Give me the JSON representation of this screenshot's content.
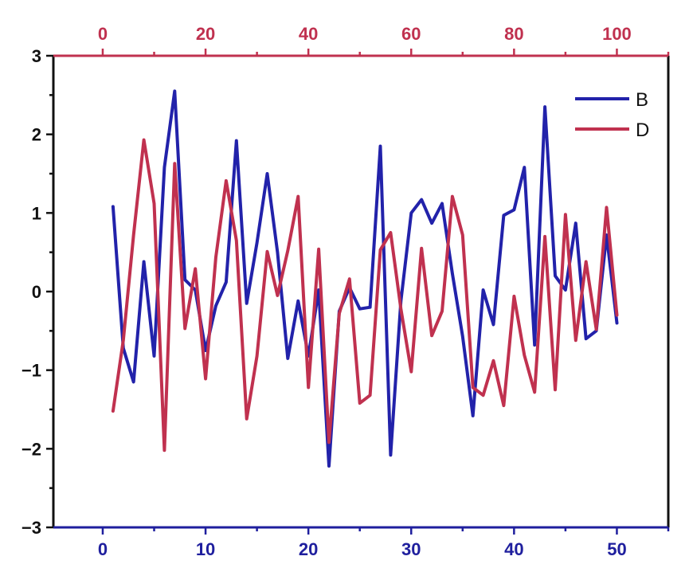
{
  "chart_data": {
    "type": "line",
    "title": "",
    "xlabel": "",
    "ylabel": "",
    "legend_position": "top-right",
    "grid": false,
    "x_bottom": {
      "range": [
        -4.8,
        55
      ],
      "ticks": [
        0,
        10,
        20,
        30,
        40,
        50
      ],
      "color": "#1f1f9e"
    },
    "x_top": {
      "range": [
        -9.6,
        110
      ],
      "ticks": [
        0,
        20,
        40,
        60,
        80,
        100
      ],
      "color": "#c0314f"
    },
    "y": {
      "range": [
        -3,
        3
      ],
      "ticks": [
        -3,
        -2,
        -1,
        0,
        1,
        2,
        3
      ]
    },
    "series": [
      {
        "name": "B",
        "color": "#2222aa",
        "axis": "bottom",
        "x": [
          1,
          2,
          3,
          4,
          5,
          6,
          7,
          8,
          9,
          10,
          11,
          12,
          13,
          14,
          15,
          16,
          17,
          18,
          19,
          20,
          21,
          22,
          23,
          24,
          25,
          26,
          27,
          28,
          29,
          30,
          31,
          32,
          33,
          34,
          35,
          36,
          37,
          38,
          39,
          40,
          41,
          42,
          43,
          44,
          45,
          46,
          47,
          48,
          49,
          50
        ],
        "values": [
          1.08,
          -0.72,
          -1.15,
          0.38,
          -0.82,
          1.58,
          2.55,
          0.15,
          0.02,
          -0.75,
          -0.18,
          0.12,
          1.92,
          -0.15,
          0.62,
          1.5,
          0.5,
          -0.85,
          -0.12,
          -0.82,
          0.02,
          -2.22,
          -0.25,
          0.05,
          -0.22,
          -0.2,
          1.85,
          -2.08,
          -0.12,
          1.0,
          1.17,
          0.87,
          1.12,
          0.23,
          -0.57,
          -1.58,
          0.02,
          -0.42,
          0.97,
          1.04,
          1.58,
          -0.68,
          2.35,
          0.2,
          0.02,
          0.87,
          -0.6,
          -0.5,
          0.72,
          -0.4
        ]
      },
      {
        "name": "D",
        "color": "#c0314f",
        "axis": "top",
        "x": [
          2,
          4,
          6,
          8,
          10,
          12,
          14,
          16,
          18,
          20,
          22,
          24,
          26,
          28,
          30,
          32,
          34,
          36,
          38,
          40,
          42,
          44,
          46,
          48,
          50,
          52,
          54,
          56,
          58,
          60,
          62,
          64,
          66,
          68,
          70,
          72,
          74,
          76,
          78,
          80,
          82,
          84,
          86,
          88,
          90,
          92,
          94,
          96,
          98,
          100
        ],
        "values": [
          -1.52,
          -0.62,
          0.72,
          1.93,
          1.12,
          -2.02,
          1.63,
          -0.47,
          0.29,
          -1.11,
          0.44,
          1.41,
          0.65,
          -1.62,
          -0.82,
          0.51,
          -0.05,
          0.52,
          1.21,
          -1.22,
          0.54,
          -1.92,
          -0.28,
          0.16,
          -1.42,
          -1.32,
          0.53,
          0.75,
          -0.22,
          -1.02,
          0.55,
          -0.56,
          -0.25,
          1.21,
          0.72,
          -1.22,
          -1.32,
          -0.88,
          -1.45,
          -0.06,
          -0.81,
          -1.28,
          0.7,
          -1.25,
          0.98,
          -0.62,
          0.38,
          -0.48,
          1.07,
          -0.3
        ]
      }
    ]
  }
}
